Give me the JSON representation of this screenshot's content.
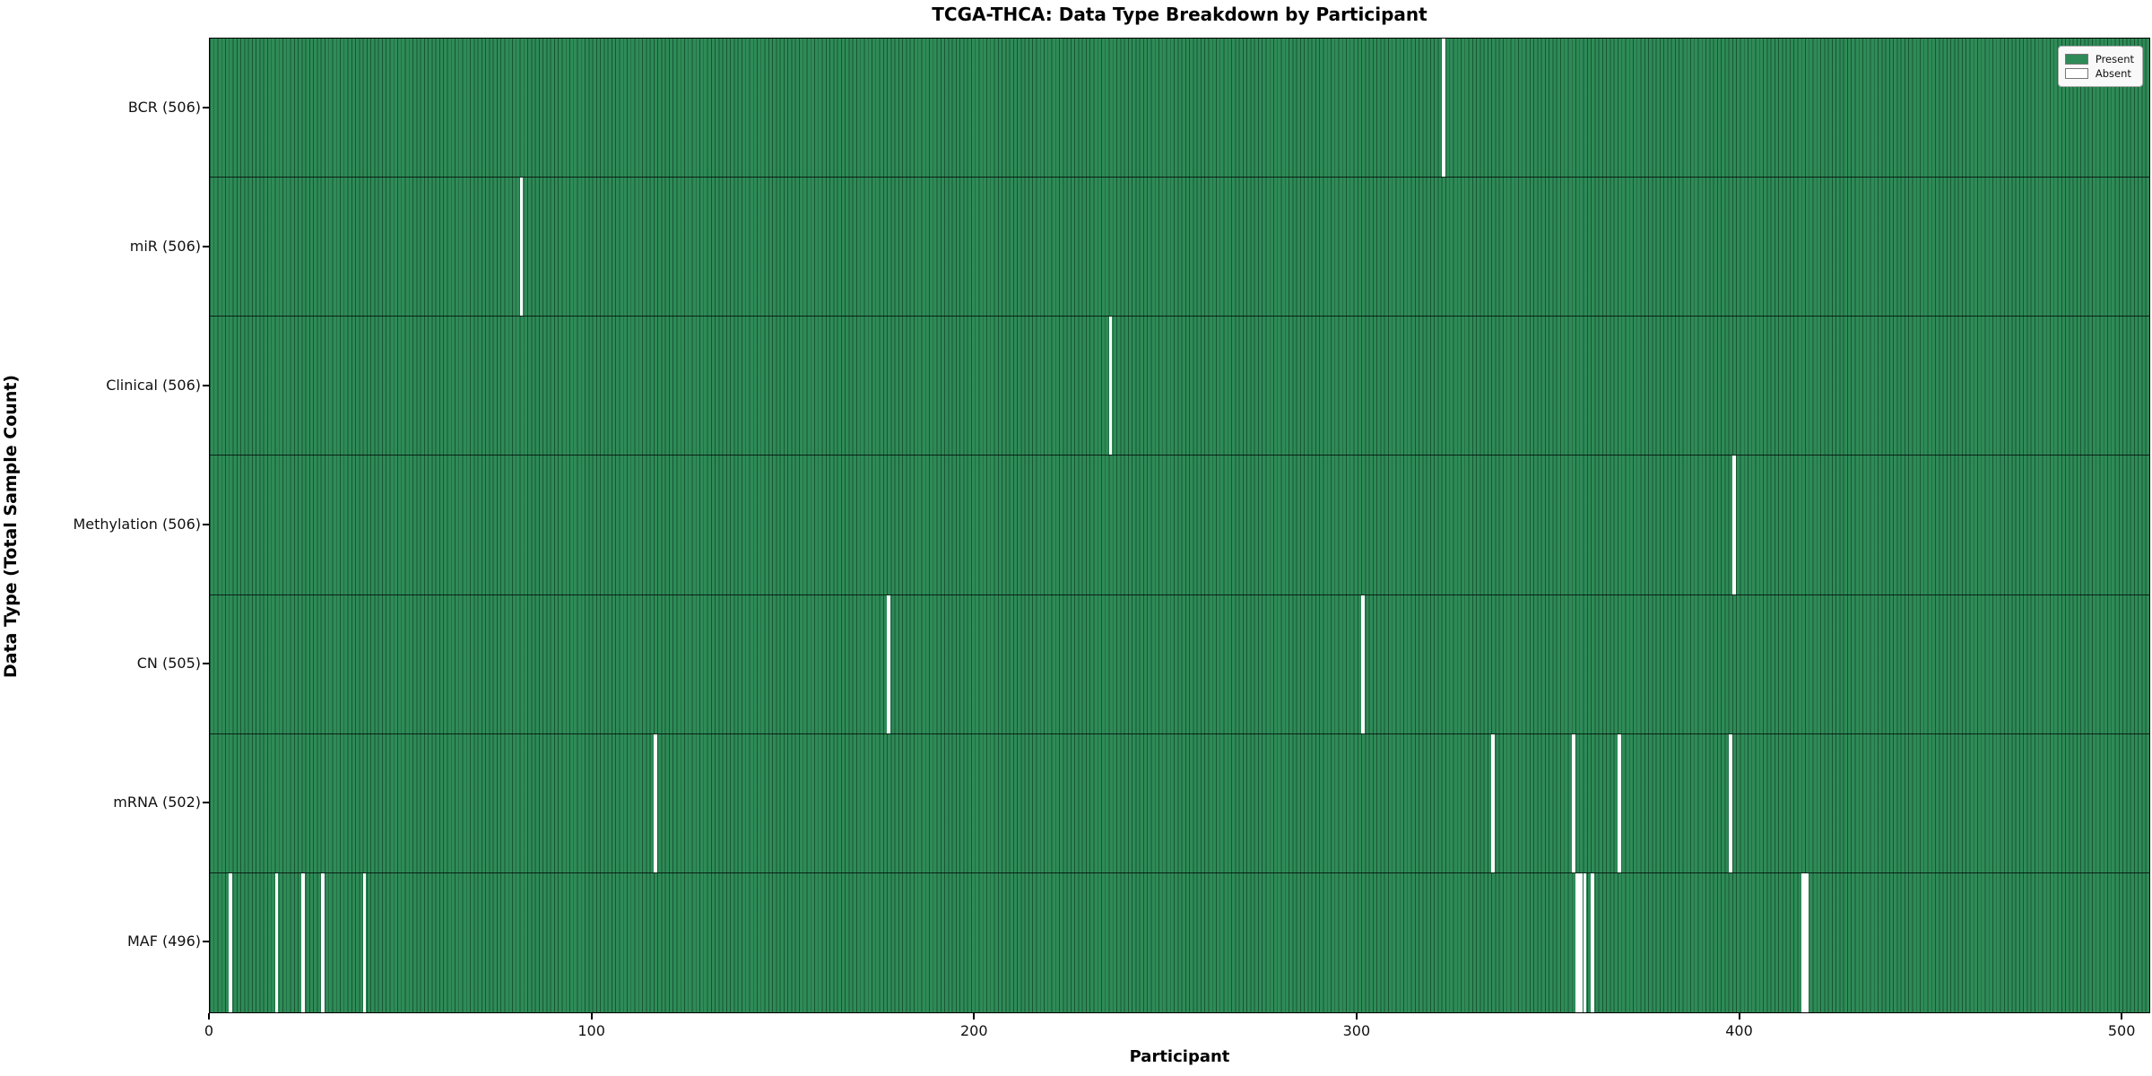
{
  "title": "TCGA-THCA: Data Type Breakdown by Participant",
  "xlabel": "Participant",
  "ylabel": "Data Type (Total Sample Count)",
  "legend": {
    "present_label": "Present",
    "absent_label": "Absent"
  },
  "colors": {
    "present": "#2e8b57",
    "absent": "#ffffff",
    "bar_edge": "rgba(8,40,24,0.55)",
    "row_divider": "rgba(0,0,0,0.75)"
  },
  "chart_data": {
    "type": "heatmap",
    "title": "TCGA-THCA: Data Type Breakdown by Participant",
    "xlabel": "Participant",
    "ylabel": "Data Type (Total Sample Count)",
    "total_participants": 507,
    "x_ticks": [
      0,
      100,
      200,
      300,
      400,
      500
    ],
    "legend_entries": [
      "Present",
      "Absent"
    ],
    "legend_position": "upper right",
    "rows": [
      {
        "label": "BCR (506)",
        "data_type": "BCR",
        "present_count": 506,
        "absent_participants": [
          322
        ]
      },
      {
        "label": "miR (506)",
        "data_type": "miR",
        "present_count": 506,
        "absent_participants": [
          81
        ]
      },
      {
        "label": "Clinical (506)",
        "data_type": "Clinical",
        "present_count": 506,
        "absent_participants": [
          235
        ]
      },
      {
        "label": "Methylation (506)",
        "data_type": "Methylation",
        "present_count": 506,
        "absent_participants": [
          398
        ]
      },
      {
        "label": "CN (505)",
        "data_type": "CN",
        "present_count": 505,
        "absent_participants": [
          177,
          301
        ]
      },
      {
        "label": "mRNA (502)",
        "data_type": "mRNA",
        "present_count": 502,
        "absent_participants": [
          116,
          335,
          356,
          368,
          397
        ]
      },
      {
        "label": "MAF (496)",
        "data_type": "MAF",
        "present_count": 496,
        "absent_participants": [
          5,
          17,
          24,
          29,
          40,
          357,
          358,
          359,
          361,
          416,
          417
        ]
      }
    ]
  }
}
